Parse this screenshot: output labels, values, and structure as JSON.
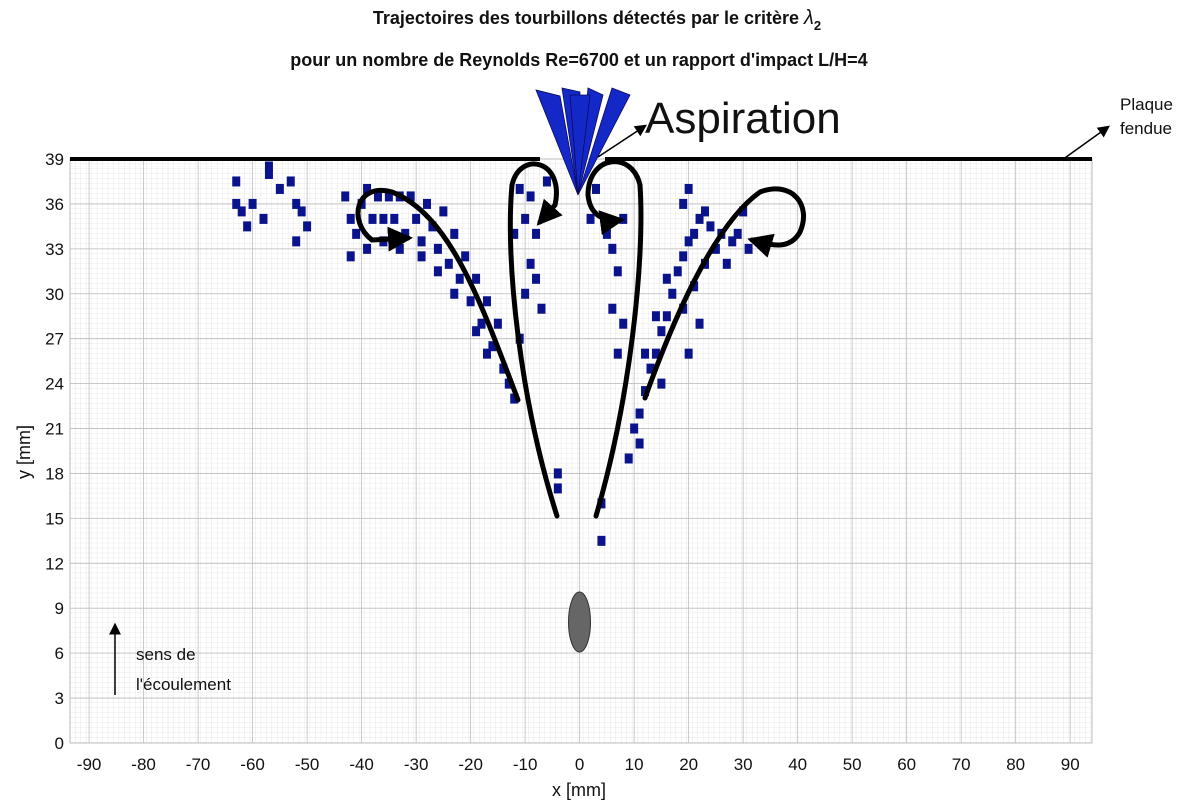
{
  "chart_data": {
    "type": "scatter",
    "title": "Trajectoires des tourbillons détectés par le critère",
    "title_symbol": "λ",
    "title_subscript": "2",
    "subtitle": "pour un nombre de Reynolds Re=6700 et un rapport d'impact L/H=4",
    "x_label": "x [mm]",
    "y_label": "y [mm]",
    "annotations": {
      "aspiration": "Aspiration",
      "plate": [
        "Plaque",
        "fendue"
      ],
      "flow": [
        "sens de",
        "l'écoulement"
      ]
    },
    "xlim": [
      -93.5,
      94
    ],
    "ylim": [
      0,
      39
    ],
    "xticks": [
      -90,
      -80,
      -70,
      -60,
      -50,
      -40,
      -30,
      -20,
      -10,
      0,
      10,
      20,
      30,
      40,
      50,
      60,
      70,
      80,
      90
    ],
    "yticks": [
      0,
      3,
      6,
      9,
      12,
      15,
      18,
      21,
      24,
      27,
      30,
      33,
      36,
      39
    ],
    "grid": true,
    "series": [
      {
        "color": "#0a138c",
        "x": [
          -63,
          -63,
          -62,
          -60,
          -57,
          -57,
          -55,
          -53,
          -52,
          -51,
          -50,
          -52,
          -58,
          -61,
          -43,
          -42,
          -41,
          -40,
          -39,
          -38,
          -37,
          -36,
          -35,
          -34,
          -33,
          -32,
          -31,
          -30,
          -29,
          -28,
          -27,
          -26,
          -25,
          -24,
          -23,
          -22,
          -21,
          -20,
          -19,
          -18,
          -17,
          -16,
          -15,
          -14,
          -13,
          -12,
          -17,
          -19,
          -23,
          -26,
          -29,
          -39,
          -36,
          -33,
          -42,
          -11,
          -10,
          -9,
          -8,
          -8,
          -7,
          -9,
          -10,
          -6,
          -11,
          -4,
          -4,
          -12,
          4,
          4,
          5,
          6,
          7,
          6,
          8,
          7,
          3,
          2,
          8,
          10,
          11,
          12,
          13,
          14,
          15,
          16,
          17,
          18,
          19,
          20,
          21,
          22,
          23,
          24,
          25,
          26,
          27,
          28,
          16,
          14,
          12,
          19,
          21,
          23,
          20,
          15,
          22,
          19,
          20,
          29,
          30,
          31,
          9,
          11
        ],
        "y": [
          37.5,
          36,
          35.5,
          36,
          38.5,
          38,
          37,
          37.5,
          36,
          35.5,
          34.5,
          33.5,
          35,
          34.5,
          36.5,
          35,
          34,
          36,
          37,
          35,
          36.5,
          35,
          36.5,
          35,
          36.5,
          34,
          36.5,
          35,
          33.5,
          36,
          34.5,
          33,
          35.5,
          32,
          34,
          31,
          32.5,
          29.5,
          31,
          28,
          29.5,
          26.5,
          28,
          25,
          24,
          23,
          26,
          27.5,
          30,
          31.5,
          32.5,
          33,
          33.5,
          33,
          32.5,
          37,
          35,
          36.5,
          34,
          31,
          29,
          32,
          30,
          37.5,
          27,
          18,
          17,
          34,
          16,
          13.5,
          34,
          33,
          31.5,
          29,
          28,
          26,
          37,
          35,
          35,
          21,
          22,
          23.5,
          25,
          26,
          27.5,
          28.5,
          30,
          31.5,
          32.5,
          33.5,
          34,
          35,
          35.5,
          34.5,
          33,
          34,
          32,
          33.5,
          31,
          28.5,
          26,
          29,
          30.5,
          32,
          26,
          24,
          28,
          36,
          37,
          34,
          35.5,
          33,
          19,
          20
        ]
      }
    ]
  }
}
